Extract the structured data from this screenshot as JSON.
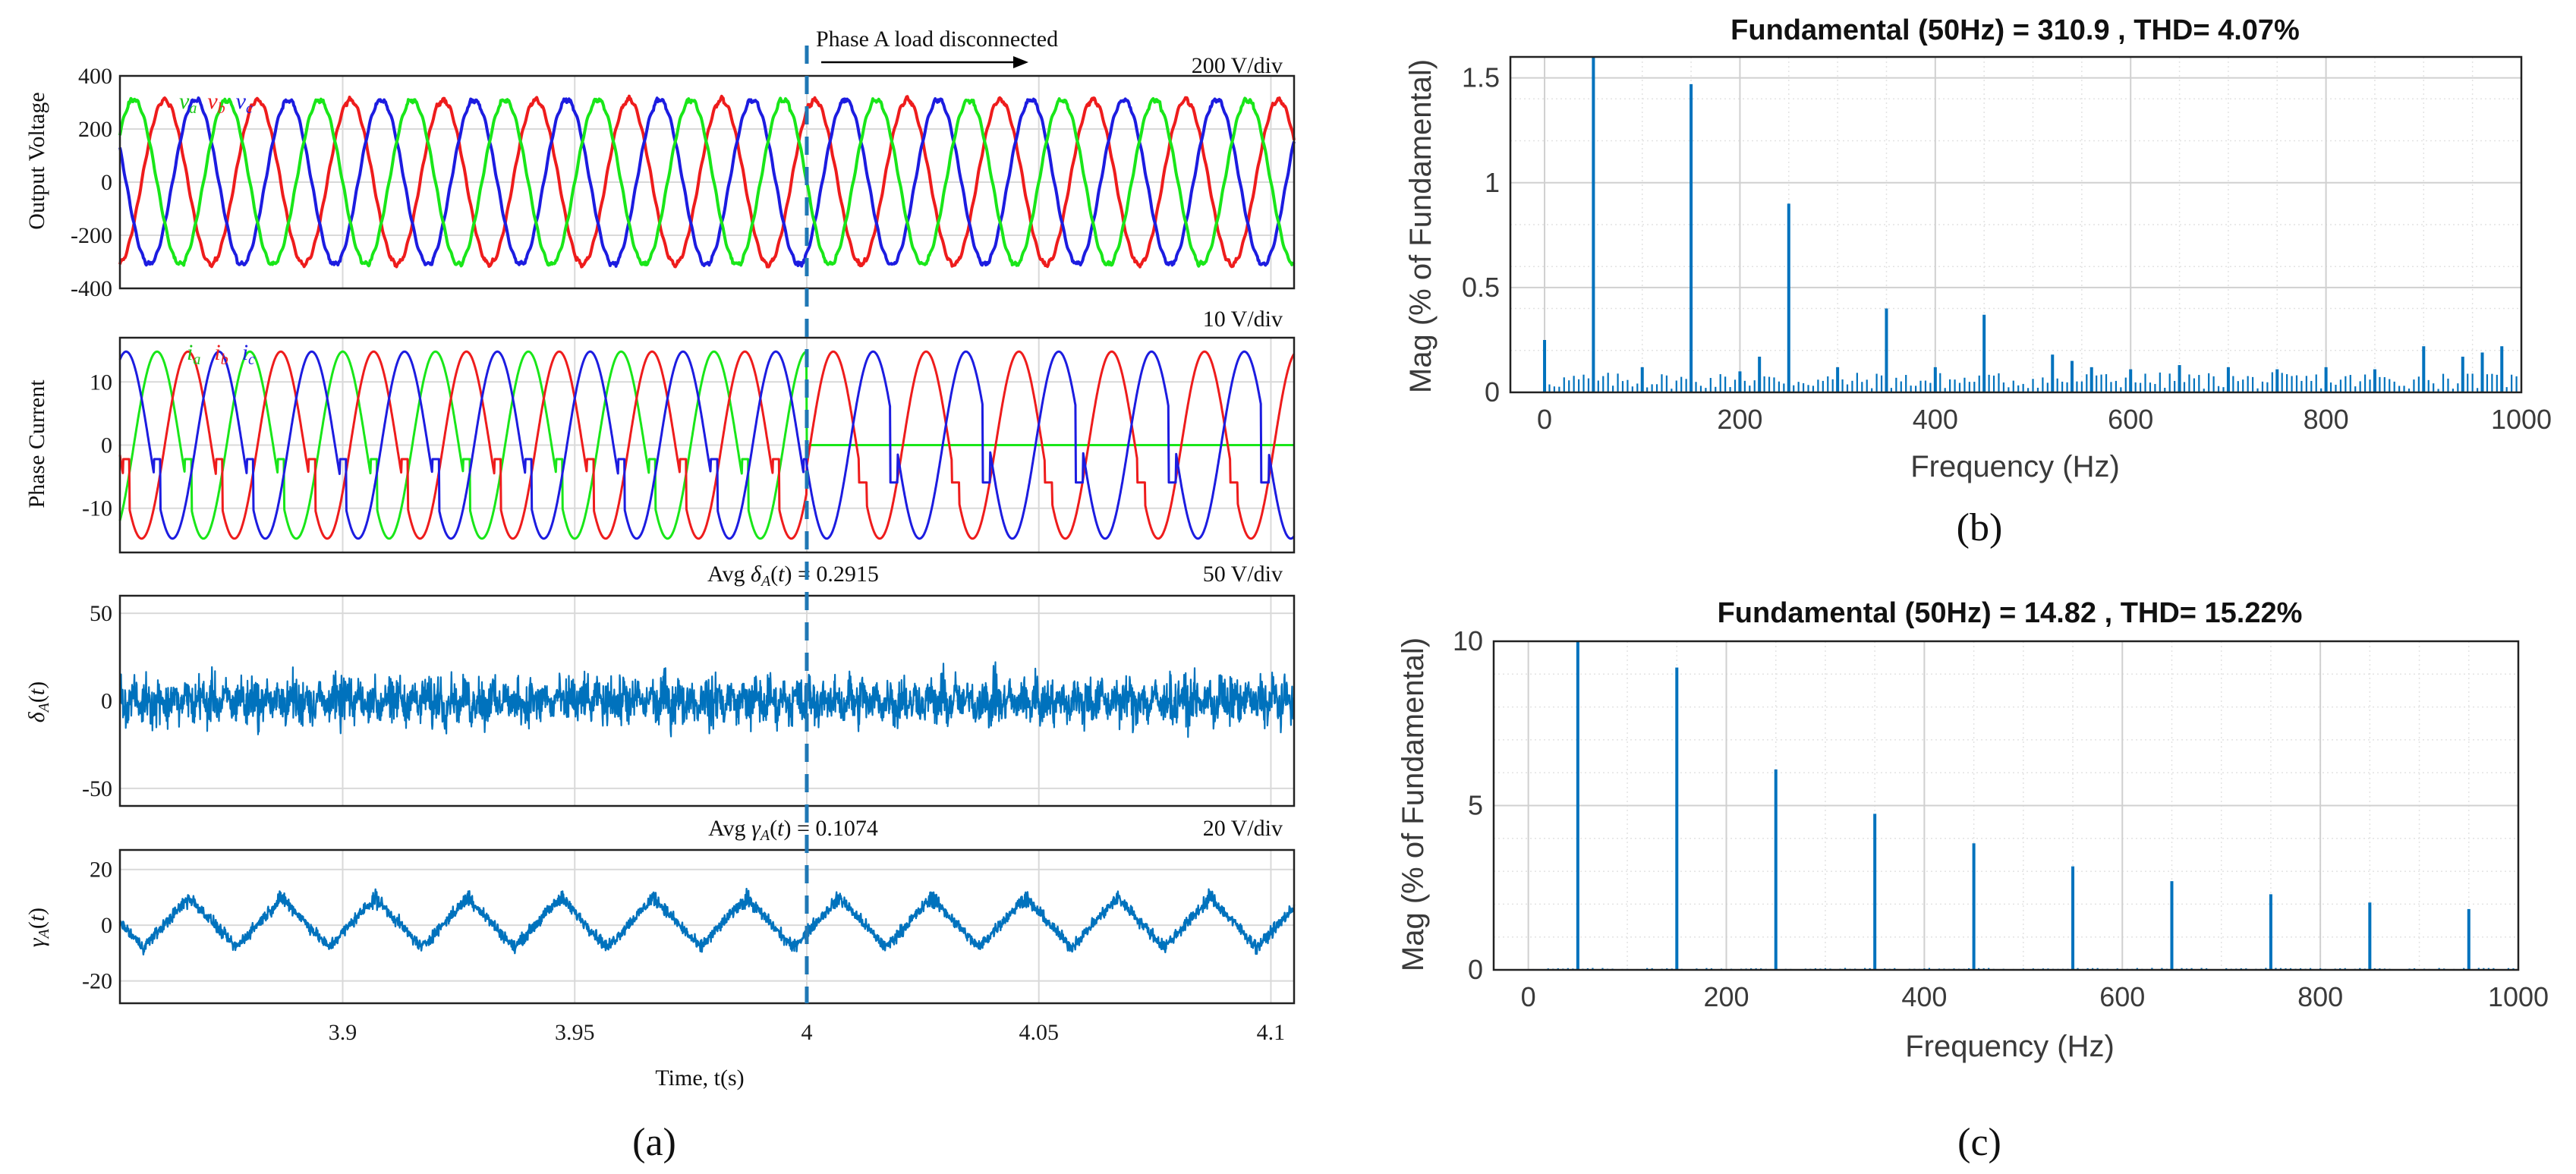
{
  "colors": {
    "phase_a": "#19e619",
    "phase_b": "#ee1c1c",
    "phase_c": "#1c1ce0",
    "matlab_blue": "#0072bd",
    "grid": "#d9d9d9"
  },
  "panel_a": {
    "caption": "(a)",
    "event_label": "Phase A load disconnected",
    "event_x": 4,
    "x_axis": {
      "label": "Time, t(s)",
      "range": [
        3.852,
        4.105
      ],
      "ticks": [
        "3.9",
        "3.95",
        "4",
        "4.05",
        "4.1"
      ],
      "tick_values": [
        3.9,
        3.95,
        4.0,
        4.05,
        4.1
      ]
    },
    "voltage": {
      "ylabel": "Output Voltage",
      "scale_note": "200 V/div",
      "yticks": [
        "400",
        "200",
        "0",
        "-200",
        "-400"
      ],
      "ylim": [
        -400,
        400
      ],
      "amplitude": 310,
      "frequency_hz": 50,
      "legend": [
        "v_a",
        "v_b",
        "v_c"
      ]
    },
    "current": {
      "ylabel": "Phase Current",
      "scale_note": "10 V/div",
      "yticks": [
        "10",
        "0",
        "-10"
      ],
      "ylim": [
        -17,
        17
      ],
      "amplitude": 14.8,
      "legend": [
        "i_a",
        "i_b",
        "i_c"
      ]
    },
    "delta": {
      "ylabel": "δA(t)",
      "annotation": "Avg δA(t) = 0.2915",
      "scale_note": "50 V/div",
      "yticks": [
        "50",
        "0",
        "-50"
      ],
      "ylim": [
        -60,
        60
      ]
    },
    "gamma": {
      "ylabel": "γA(t)",
      "annotation": "Avg γA(t) = 0.1074",
      "scale_note": "20 V/div",
      "yticks": [
        "20",
        "0",
        "-20"
      ],
      "ylim": [
        -28,
        27
      ]
    }
  },
  "chart_data": [
    {
      "type": "bar",
      "panel": "b",
      "caption": "(b)",
      "title": "Fundamental (50Hz) = 310.9 , THD= 4.07%",
      "xlabel": "Frequency (Hz)",
      "ylabel": "Mag (% of Fundamental)",
      "xlim": [
        -35,
        1000
      ],
      "ylim": [
        0,
        1.6
      ],
      "xticks": [
        "0",
        "200",
        "400",
        "600",
        "800",
        "1000"
      ],
      "yticks": [
        "0",
        "0.5",
        "1",
        "1.5"
      ],
      "grid": true,
      "series": [
        {
          "x": [
            0,
            50,
            150,
            250,
            350,
            450,
            100,
            200,
            220,
            300,
            400,
            520,
            540,
            560,
            600,
            650,
            700,
            750,
            800,
            850,
            900,
            940,
            960,
            980
          ],
          "values": [
            0.25,
            1.6,
            1.47,
            0.9,
            0.4,
            0.37,
            0.12,
            0.1,
            0.17,
            0.12,
            0.12,
            0.18,
            0.15,
            0.12,
            0.11,
            0.13,
            0.12,
            0.11,
            0.12,
            0.11,
            0.22,
            0.17,
            0.19,
            0.22
          ]
        }
      ]
    },
    {
      "type": "bar",
      "panel": "c",
      "caption": "(c)",
      "title": "Fundamental (50Hz) = 14.82 , THD= 15.22%",
      "xlabel": "Frequency (Hz)",
      "ylabel": "Mag (% of Fundamental)",
      "xlim": [
        -35,
        1000
      ],
      "ylim": [
        0,
        10
      ],
      "xticks": [
        "0",
        "200",
        "400",
        "600",
        "800",
        "1000"
      ],
      "yticks": [
        "0",
        "5",
        "10"
      ],
      "grid": true,
      "series": [
        {
          "x": [
            50,
            150,
            250,
            350,
            450,
            550,
            650,
            750,
            850,
            950
          ],
          "values": [
            10,
            9.2,
            6.1,
            4.75,
            3.85,
            3.15,
            2.7,
            2.3,
            2.05,
            1.85
          ]
        }
      ]
    }
  ]
}
